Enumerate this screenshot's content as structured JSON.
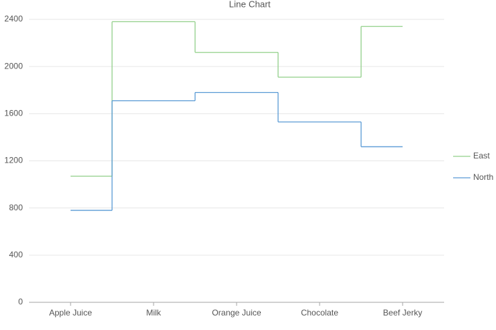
{
  "chart_data": {
    "type": "line",
    "step": "mid",
    "title": "Line Chart",
    "categories": [
      "Apple Juice",
      "Milk",
      "Orange Juice",
      "Chocolate",
      "Beef Jerky"
    ],
    "series": [
      {
        "name": "East",
        "color": "#92d08a",
        "values": [
          1070,
          2380,
          2120,
          1910,
          2340
        ]
      },
      {
        "name": "North",
        "color": "#5b9bd5",
        "values": [
          780,
          1710,
          1780,
          1530,
          1320
        ]
      }
    ],
    "ylim": [
      0,
      2400
    ],
    "yticks": [
      0,
      400,
      800,
      1200,
      1600,
      2000,
      2400
    ],
    "grid": true,
    "legend": "right"
  }
}
